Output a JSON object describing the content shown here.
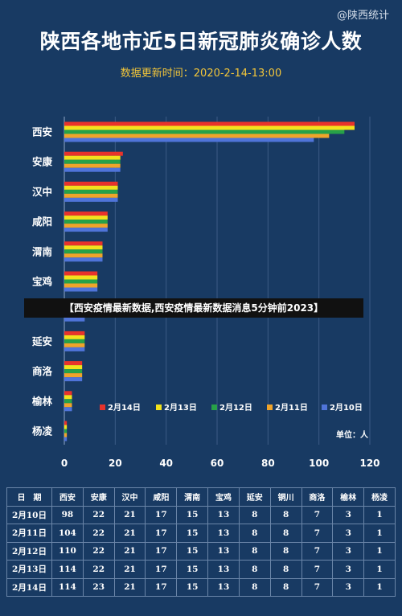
{
  "watermark": "@陕西统计",
  "title": "陕西各地市近5日新冠肺炎确诊人数",
  "subtitle": "数据更新时间：2020-2-14-13:00",
  "banner": "【西安疫情最新数据,西安疫情最新数据消息5分钟前2023】",
  "chart_data": {
    "type": "bar",
    "orientation": "horizontal",
    "title": "陕西各地市近5日新冠肺炎确诊人数",
    "unit_label": "单位：人",
    "categories": [
      "西安",
      "安康",
      "汉中",
      "咸阳",
      "渭南",
      "宝鸡",
      "铜川",
      "延安",
      "商洛",
      "榆林",
      "杨凌"
    ],
    "xlim": [
      0,
      120
    ],
    "xticks": [
      0,
      20,
      40,
      60,
      80,
      100,
      120
    ],
    "grid": true,
    "legend_position": "bottom-right",
    "series": [
      {
        "name": "2月14日",
        "color": "#e8332b",
        "values": [
          114,
          23,
          21,
          17,
          15,
          13,
          8,
          8,
          7,
          3,
          1
        ]
      },
      {
        "name": "2月13日",
        "color": "#f2e21c",
        "values": [
          114,
          22,
          21,
          17,
          15,
          13,
          8,
          8,
          7,
          3,
          1
        ]
      },
      {
        "name": "2月12日",
        "color": "#27a148",
        "values": [
          110,
          22,
          21,
          17,
          15,
          13,
          8,
          8,
          7,
          3,
          1
        ]
      },
      {
        "name": "2月11日",
        "color": "#f0a42a",
        "values": [
          104,
          22,
          21,
          17,
          15,
          13,
          8,
          8,
          7,
          3,
          1
        ]
      },
      {
        "name": "2月10日",
        "color": "#4f74d9",
        "values": [
          98,
          22,
          21,
          17,
          15,
          13,
          8,
          8,
          7,
          3,
          1
        ]
      }
    ]
  },
  "table": {
    "headers": [
      "日　期",
      "西安",
      "安康",
      "汉中",
      "咸阳",
      "渭南",
      "宝鸡",
      "延安",
      "铜川",
      "商洛",
      "榆林",
      "杨凌"
    ],
    "rows": [
      [
        "2月10日",
        "98",
        "22",
        "21",
        "17",
        "15",
        "13",
        "8",
        "8",
        "7",
        "3",
        "1"
      ],
      [
        "2月11日",
        "104",
        "22",
        "21",
        "17",
        "15",
        "13",
        "8",
        "8",
        "7",
        "3",
        "1"
      ],
      [
        "2月12日",
        "110",
        "22",
        "21",
        "17",
        "15",
        "13",
        "8",
        "8",
        "7",
        "3",
        "1"
      ],
      [
        "2月13日",
        "114",
        "22",
        "21",
        "17",
        "15",
        "13",
        "8",
        "8",
        "7",
        "3",
        "1"
      ],
      [
        "2月14日",
        "114",
        "23",
        "21",
        "17",
        "15",
        "13",
        "8",
        "8",
        "7",
        "3",
        "1"
      ]
    ]
  }
}
